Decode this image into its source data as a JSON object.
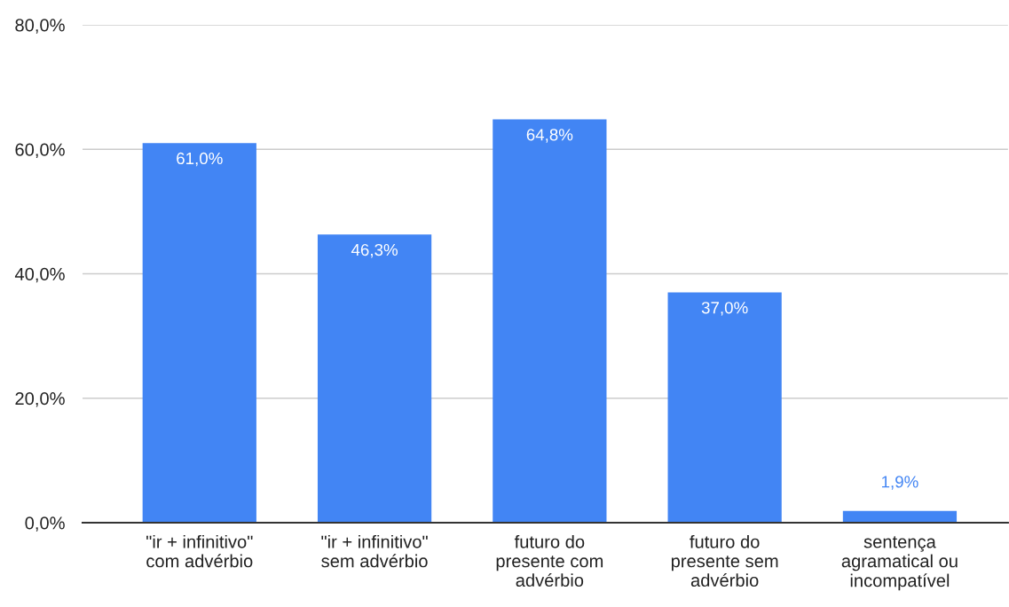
{
  "chart_data": {
    "type": "bar",
    "categories": [
      "\"ir + infinitivo\" com advérbio",
      "\"ir + infinitivo\" sem advérbio",
      "futuro do presente com advérbio",
      "futuro do presente sem advérbio",
      "sentença agramatical ou incompatível"
    ],
    "values": [
      61.0,
      46.3,
      64.8,
      37.0,
      1.9
    ],
    "value_labels": [
      "61,0%",
      "46,3%",
      "64,8%",
      "37,0%",
      "1,9%"
    ],
    "color": "#4285f4",
    "ylim": [
      0,
      80
    ],
    "yticks": [
      {
        "value": 0,
        "label": "0,0%"
      },
      {
        "value": 20,
        "label": "20,0%"
      },
      {
        "value": 40,
        "label": "40,0%"
      },
      {
        "value": 60,
        "label": "60,0%"
      },
      {
        "value": 80,
        "label": "80,0%"
      }
    ],
    "grid": "y"
  }
}
